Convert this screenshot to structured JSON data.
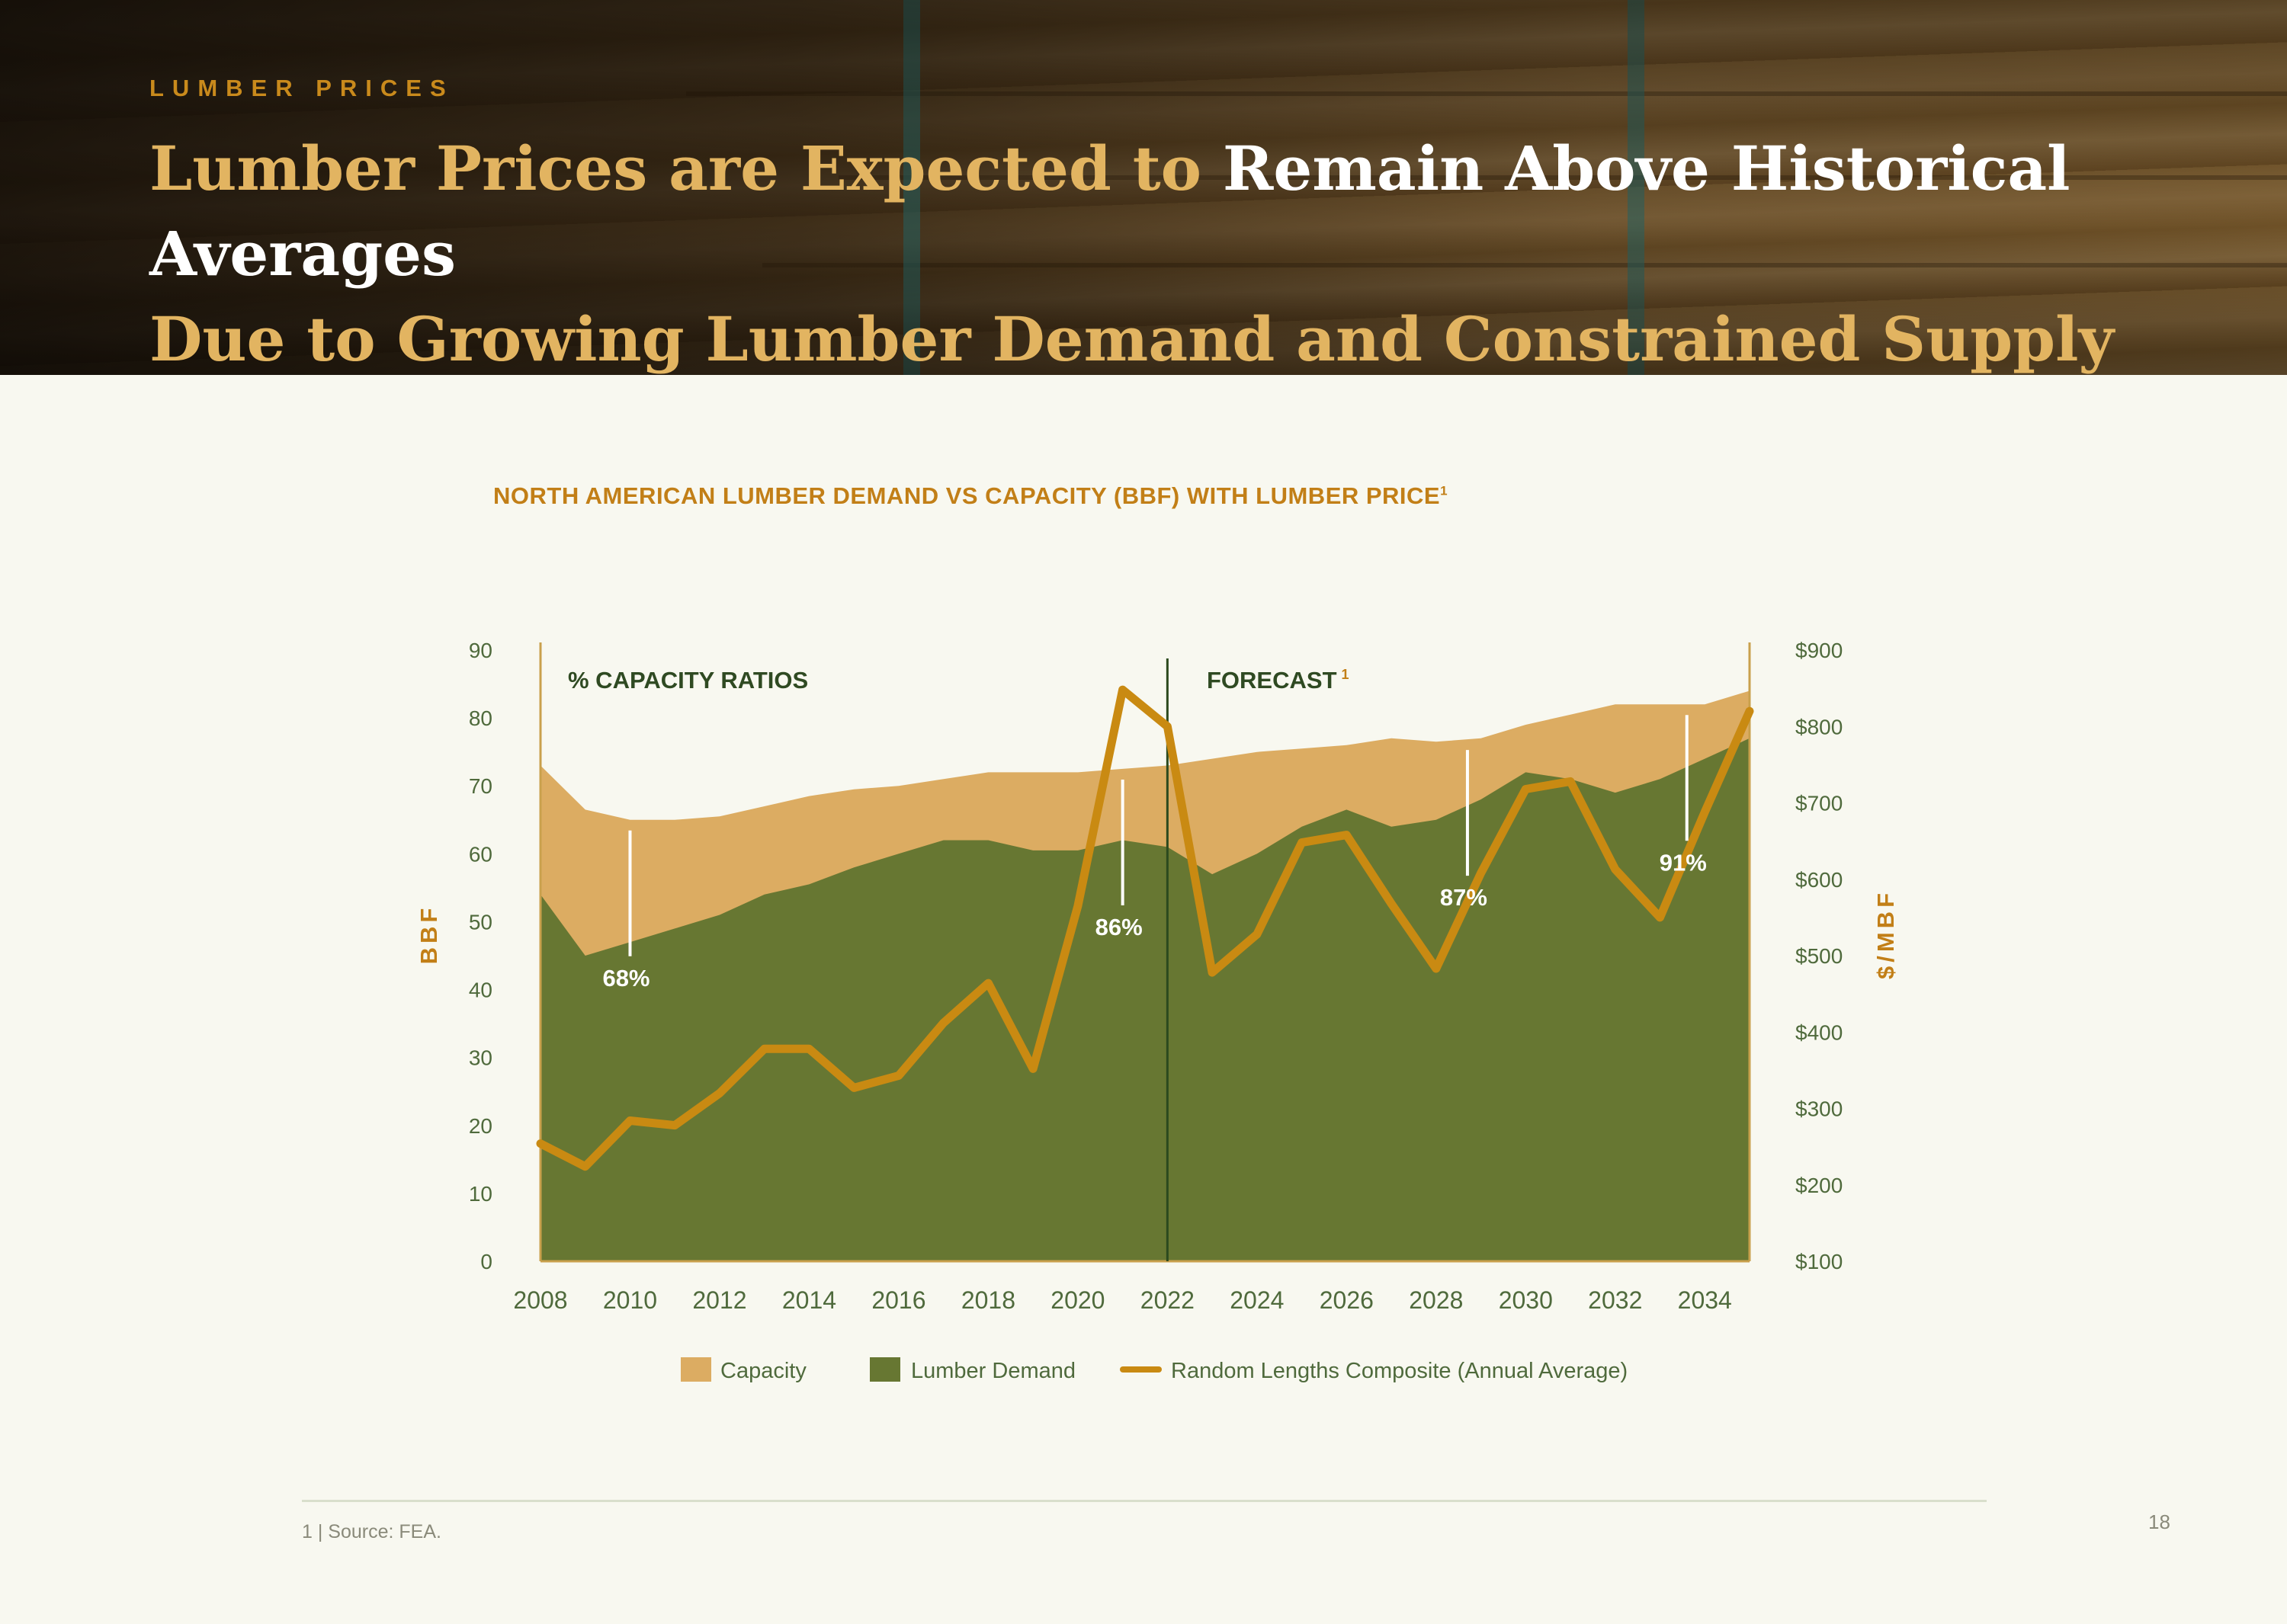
{
  "header": {
    "section_label": "LUMBER PRICES",
    "title_line1_gold": "Lumber Prices are Expected to ",
    "title_line1_white": "Remain Above Historical Averages",
    "title_line2_gold": "Due to Growing Lumber Demand and Constrained Supply"
  },
  "chart_data": {
    "type": "area",
    "title": "NORTH AMERICAN LUMBER DEMAND VS CAPACITY (BBF) WITH LUMBER PRICE",
    "title_superscript": "1",
    "ylabel": "BBF",
    "y2label": "$/MBF",
    "ylim": [
      0,
      90
    ],
    "y2lim": [
      100,
      900
    ],
    "y_ticks": [
      "0",
      "10",
      "20",
      "30",
      "40",
      "50",
      "60",
      "70",
      "80",
      "90"
    ],
    "y2_ticks": [
      "$100",
      "$200",
      "$300",
      "$400",
      "$500",
      "$600",
      "$700",
      "$800",
      "$900"
    ],
    "x_ticks": [
      "2008",
      "2010",
      "2012",
      "2014",
      "2016",
      "2018",
      "2020",
      "2022",
      "2024",
      "2026",
      "2028",
      "2030",
      "2032",
      "2034"
    ],
    "x": [
      2008,
      2009,
      2010,
      2011,
      2012,
      2013,
      2014,
      2015,
      2016,
      2017,
      2018,
      2019,
      2020,
      2021,
      2022,
      2023,
      2024,
      2025,
      2026,
      2027,
      2028,
      2029,
      2030,
      2031,
      2032,
      2033,
      2034,
      2035
    ],
    "series": [
      {
        "name": "Capacity",
        "color": "#dcac62",
        "axis": "left",
        "values": [
          73,
          66.5,
          65,
          65,
          65.5,
          67,
          68.5,
          69.5,
          70,
          71,
          72,
          72,
          72,
          72.5,
          73,
          74,
          75,
          75.5,
          76,
          77,
          76.5,
          77,
          79,
          80.5,
          82,
          82,
          82,
          84
        ]
      },
      {
        "name": "Lumber Demand",
        "color": "#677732",
        "axis": "left",
        "values": [
          54,
          45,
          47,
          49,
          51,
          54,
          55.5,
          58,
          60,
          62,
          62,
          60.5,
          60.5,
          62,
          61,
          57,
          60,
          64,
          66.5,
          64,
          65,
          68,
          72,
          71,
          69,
          71,
          74,
          77
        ]
      },
      {
        "name": "Random Lengths Composite (Annual Average)",
        "color": "#c98a12",
        "axis": "right",
        "values": [
          254,
          224,
          284,
          278,
          320,
          378,
          378,
          327,
          343,
          412,
          464,
          352,
          565,
          848,
          800,
          478,
          528,
          648,
          658,
          568,
          483,
          608,
          718,
          728,
          613,
          550,
          688,
          820
        ]
      }
    ],
    "forecast_start": 2022,
    "annotations": [
      {
        "text": "% CAPACITY RATIOS",
        "kind": "header"
      },
      {
        "text": "FORECAST",
        "superscript": "1",
        "kind": "header"
      },
      {
        "text": "68%",
        "year": 2010
      },
      {
        "text": "86%",
        "year": 2021
      },
      {
        "text": "87%",
        "year": 2028.7
      },
      {
        "text": "91%",
        "year": 2033.6
      }
    ],
    "legend_position": "bottom",
    "grid": false
  },
  "colors": {
    "background": "#f8f8f0",
    "accent": "#c27f17",
    "axis_text": "#4f6a3c",
    "forecast_line": "#2c4a1e"
  },
  "footer": {
    "footnote": "1 | Source: FEA.",
    "page_number": "18"
  }
}
